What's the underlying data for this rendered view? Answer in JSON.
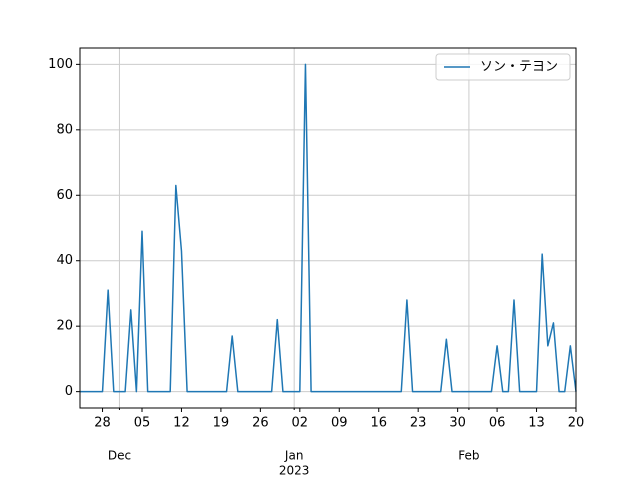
{
  "chart_data": {
    "type": "line",
    "x": [
      "2022-11-24",
      "2022-11-25",
      "2022-11-26",
      "2022-11-27",
      "2022-11-28",
      "2022-11-29",
      "2022-11-30",
      "2022-12-01",
      "2022-12-02",
      "2022-12-03",
      "2022-12-04",
      "2022-12-05",
      "2022-12-06",
      "2022-12-07",
      "2022-12-08",
      "2022-12-09",
      "2022-12-10",
      "2022-12-11",
      "2022-12-12",
      "2022-12-13",
      "2022-12-14",
      "2022-12-15",
      "2022-12-16",
      "2022-12-17",
      "2022-12-18",
      "2022-12-19",
      "2022-12-20",
      "2022-12-21",
      "2022-12-22",
      "2022-12-23",
      "2022-12-24",
      "2022-12-25",
      "2022-12-26",
      "2022-12-27",
      "2022-12-28",
      "2022-12-29",
      "2022-12-30",
      "2022-12-31",
      "2023-01-01",
      "2023-01-02",
      "2023-01-03",
      "2023-01-04",
      "2023-01-05",
      "2023-01-06",
      "2023-01-07",
      "2023-01-08",
      "2023-01-09",
      "2023-01-10",
      "2023-01-11",
      "2023-01-12",
      "2023-01-13",
      "2023-01-14",
      "2023-01-15",
      "2023-01-16",
      "2023-01-17",
      "2023-01-18",
      "2023-01-19",
      "2023-01-20",
      "2023-01-21",
      "2023-01-22",
      "2023-01-23",
      "2023-01-24",
      "2023-01-25",
      "2023-01-26",
      "2023-01-27",
      "2023-01-28",
      "2023-01-29",
      "2023-01-30",
      "2023-01-31",
      "2023-02-01",
      "2023-02-02",
      "2023-02-03",
      "2023-02-04",
      "2023-02-05",
      "2023-02-06",
      "2023-02-07",
      "2023-02-08",
      "2023-02-09",
      "2023-02-10",
      "2023-02-11",
      "2023-02-12",
      "2023-02-13",
      "2023-02-14",
      "2023-02-15",
      "2023-02-16",
      "2023-02-17",
      "2023-02-18",
      "2023-02-19",
      "2023-02-20"
    ],
    "series": [
      {
        "name": "ソン・テヨン",
        "color": "#1f77b4",
        "values": [
          0,
          0,
          0,
          0,
          0,
          31,
          0,
          0,
          0,
          25,
          0,
          49,
          0,
          0,
          0,
          0,
          0,
          63,
          43,
          0,
          0,
          0,
          0,
          0,
          0,
          0,
          0,
          17,
          0,
          0,
          0,
          0,
          0,
          0,
          0,
          22,
          0,
          0,
          0,
          0,
          100,
          0,
          0,
          0,
          0,
          0,
          0,
          0,
          0,
          0,
          0,
          0,
          0,
          0,
          0,
          0,
          0,
          0,
          28,
          0,
          0,
          0,
          0,
          0,
          0,
          16,
          0,
          0,
          0,
          0,
          0,
          0,
          0,
          0,
          14,
          0,
          0,
          28,
          0,
          0,
          0,
          0,
          42,
          14,
          21,
          0,
          0,
          14,
          0
        ]
      }
    ],
    "xlim": [
      "2022-11-24",
      "2023-02-20"
    ],
    "xticks": [
      {
        "value": "2022-11-28",
        "label": "28"
      },
      {
        "value": "2022-12-05",
        "label": "05"
      },
      {
        "value": "2022-12-12",
        "label": "12"
      },
      {
        "value": "2022-12-19",
        "label": "19"
      },
      {
        "value": "2022-12-26",
        "label": "26"
      },
      {
        "value": "2023-01-02",
        "label": "02"
      },
      {
        "value": "2023-01-09",
        "label": "09"
      },
      {
        "value": "2023-01-16",
        "label": "16"
      },
      {
        "value": "2023-01-23",
        "label": "23"
      },
      {
        "value": "2023-01-30",
        "label": "30"
      },
      {
        "value": "2023-02-06",
        "label": "06"
      },
      {
        "value": "2023-02-13",
        "label": "13"
      },
      {
        "value": "2023-02-20",
        "label": "20"
      }
    ],
    "month_ticks": [
      {
        "value": "2022-12-01",
        "label": "Dec"
      },
      {
        "value": "2023-01-01",
        "label": "Jan",
        "year": "2023"
      },
      {
        "value": "2023-02-01",
        "label": "Feb"
      }
    ],
    "ylim": [
      -5,
      105
    ],
    "yticks": [
      0,
      20,
      40,
      60,
      80,
      100
    ],
    "grid": true,
    "legend": "upper right"
  }
}
